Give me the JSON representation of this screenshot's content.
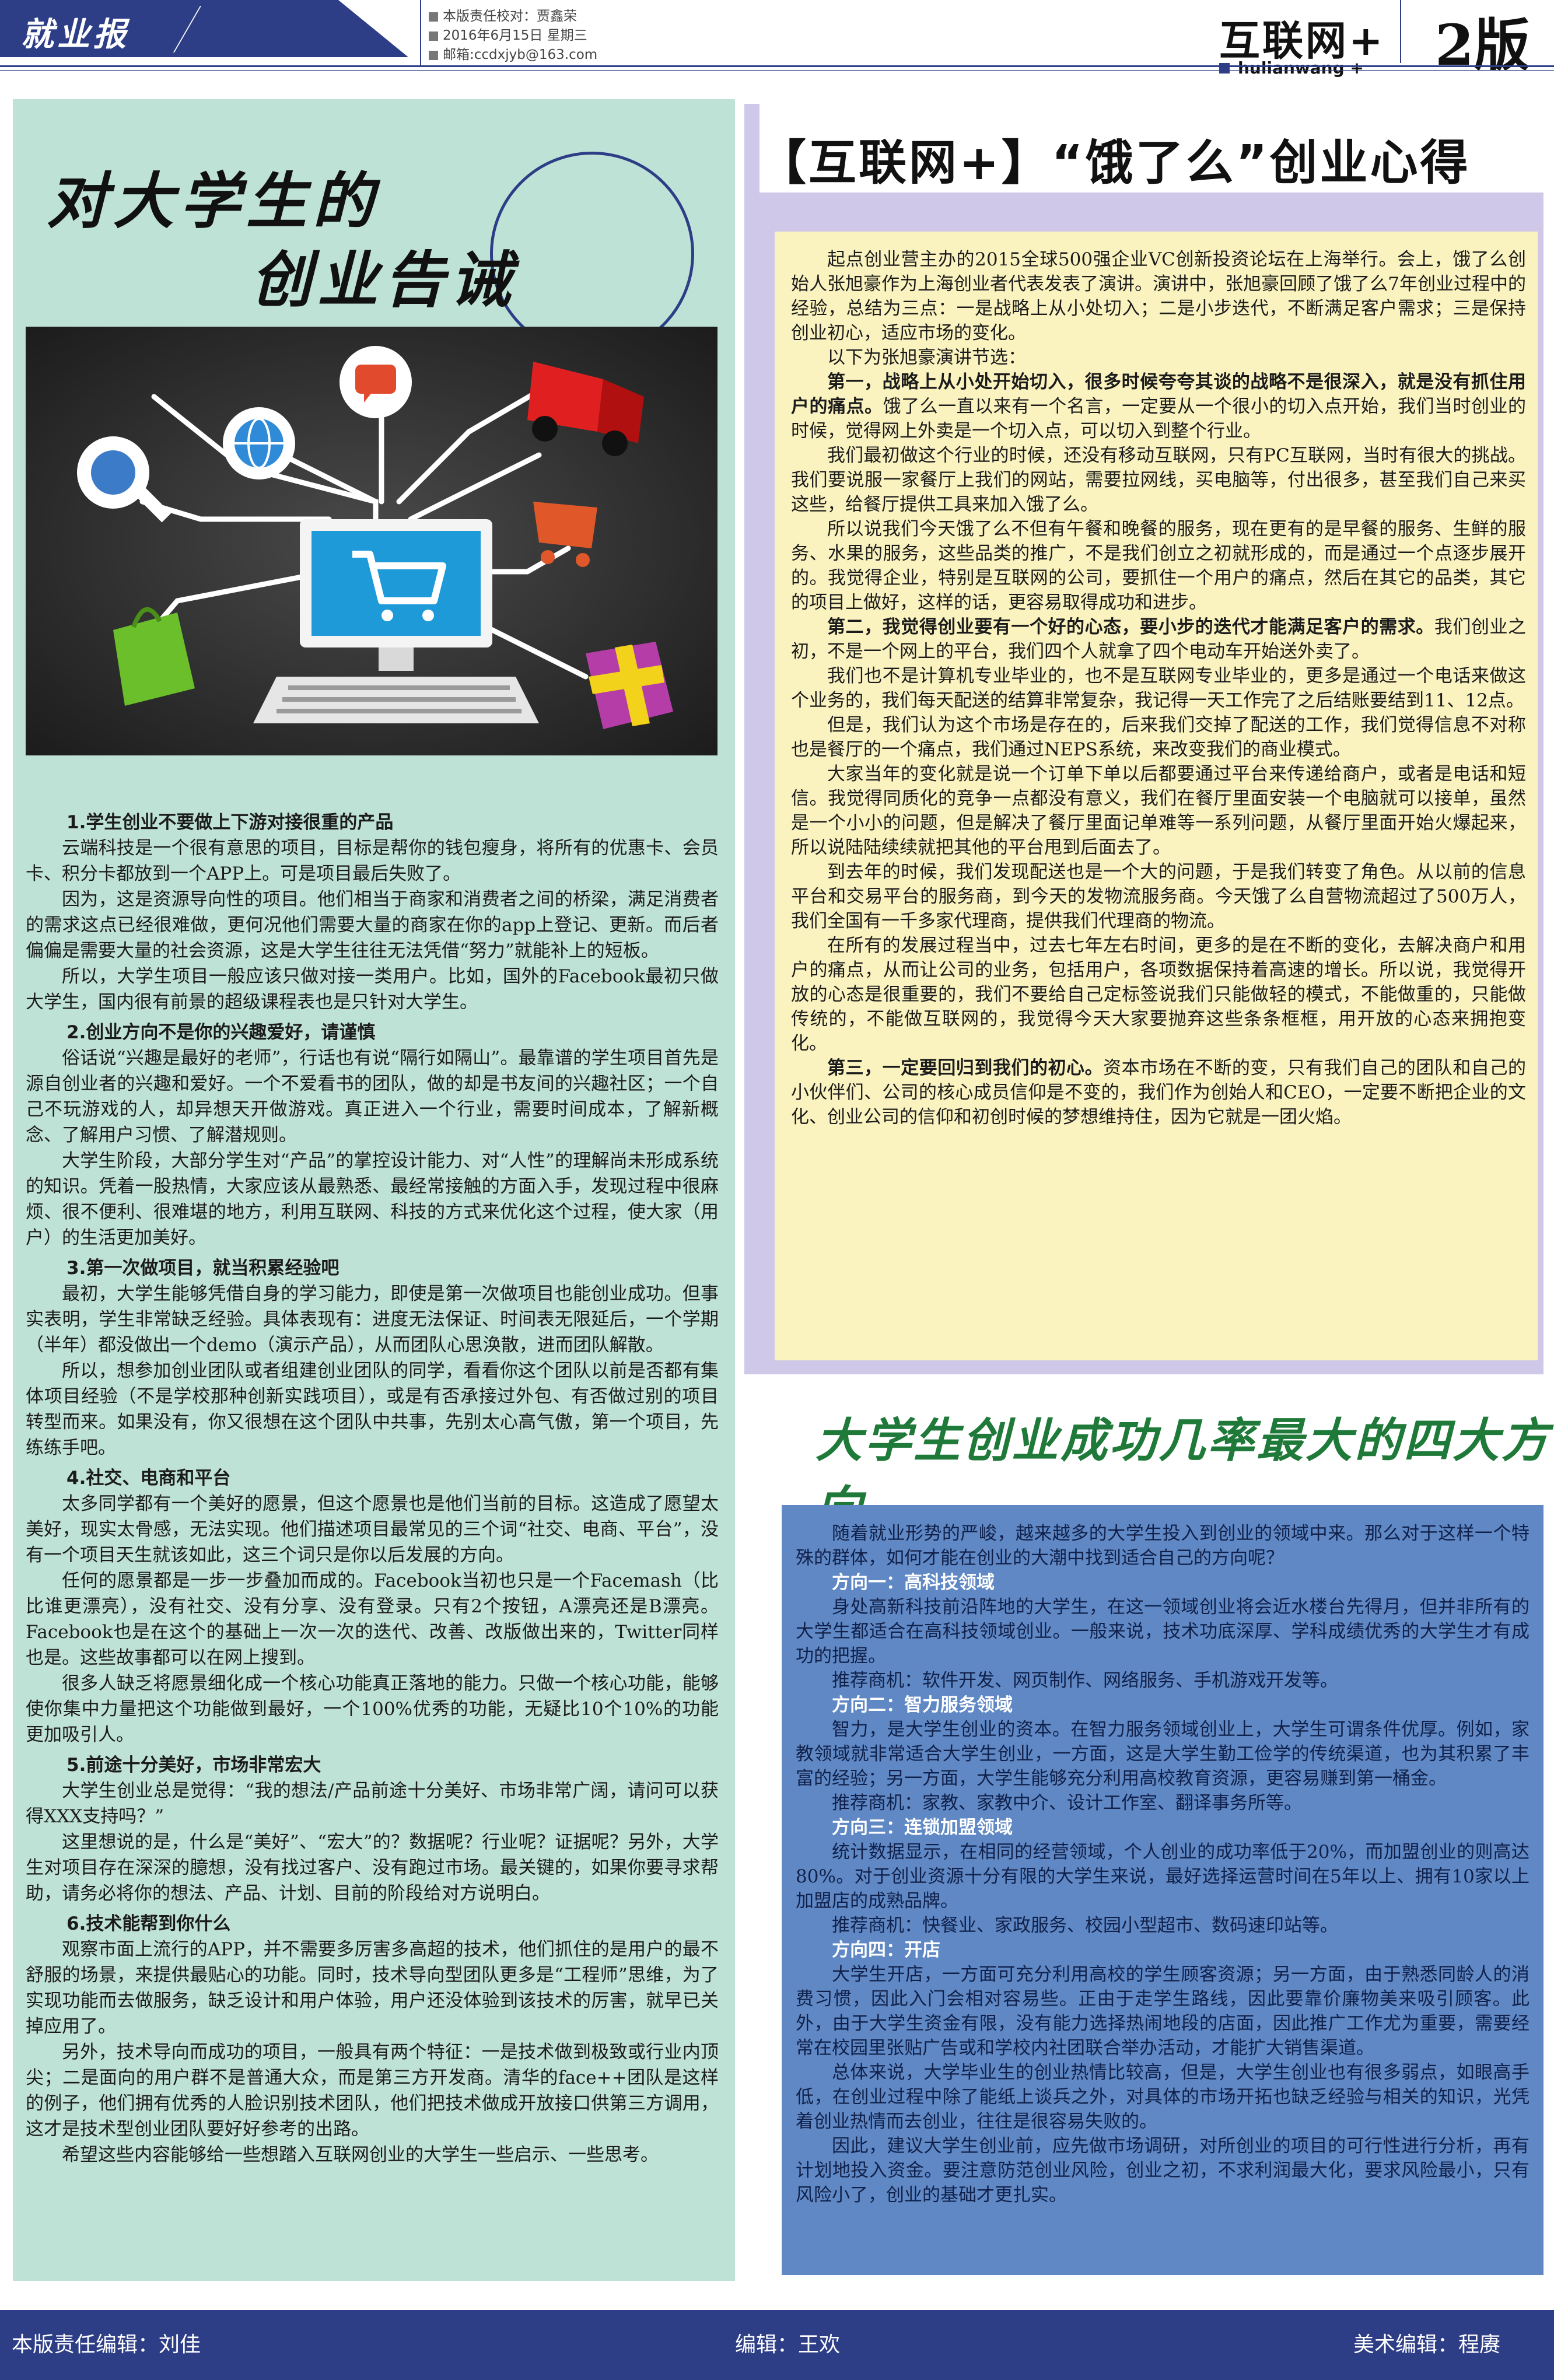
{
  "masthead": {
    "logo": "就业报",
    "editor_line": "本版责任校对：贾鑫荣",
    "date_line": "2016年6月15日  星期三",
    "email_line": "邮箱:ccdxjyb@163.com",
    "section_title": "互联网+",
    "section_sub": "hulianwang +",
    "edition": "2版"
  },
  "left_article": {
    "title_line1": "对大学生的",
    "title_line2": "创业告诫",
    "blocks": [
      {
        "type": "h",
        "text": "1.学生创业不要做上下游对接很重的产品"
      },
      {
        "type": "p",
        "text": "云端科技是一个很有意思的项目，目标是帮你的钱包瘦身，将所有的优惠卡、会员卡、积分卡都放到一个APP上。可是项目最后失败了。"
      },
      {
        "type": "p",
        "text": "因为，这是资源导向性的项目。他们相当于商家和消费者之间的桥梁，满足消费者的需求这点已经很难做，更何况他们需要大量的商家在你的app上登记、更新。而后者偏偏是需要大量的社会资源，这是大学生往往无法凭借“努力”就能补上的短板。"
      },
      {
        "type": "p",
        "text": "所以，大学生项目一般应该只做对接一类用户。比如，国外的Facebook最初只做大学生，国内很有前景的超级课程表也是只针对大学生。"
      },
      {
        "type": "h",
        "text": "2.创业方向不是你的兴趣爱好，请谨慎"
      },
      {
        "type": "p",
        "text": "俗话说“兴趣是最好的老师”，行话也有说“隔行如隔山”。最靠谱的学生项目首先是源自创业者的兴趣和爱好。一个不爱看书的团队，做的却是书友间的兴趣社区；一个自己不玩游戏的人，却异想天开做游戏。真正进入一个行业，需要时间成本，了解新概念、了解用户习惯、了解潜规则。"
      },
      {
        "type": "p",
        "text": "大学生阶段，大部分学生对“产品”的掌控设计能力、对“人性”的理解尚未形成系统的知识。凭着一股热情，大家应该从最熟悉、最经常接触的方面入手，发现过程中很麻烦、很不便利、很难堪的地方，利用互联网、科技的方式来优化这个过程，使大家（用户）的生活更加美好。"
      },
      {
        "type": "h",
        "text": "3.第一次做项目，就当积累经验吧"
      },
      {
        "type": "p",
        "text": "最初，大学生能够凭借自身的学习能力，即使是第一次做项目也能创业成功。但事实表明，学生非常缺乏经验。具体表现有：进度无法保证、时间表无限延后，一个学期（半年）都没做出一个demo（演示产品），从而团队心思涣散，进而团队解散。"
      },
      {
        "type": "p",
        "text": "所以，想参加创业团队或者组建创业团队的同学，看看你这个团队以前是否都有集体项目经验（不是学校那种创新实践项目），或是有否承接过外包、有否做过别的项目转型而来。如果没有，你又很想在这个团队中共事，先别太心高气傲，第一个项目，先练练手吧。"
      },
      {
        "type": "h",
        "text": "4.社交、电商和平台"
      },
      {
        "type": "p",
        "text": "太多同学都有一个美好的愿景，但这个愿景也是他们当前的目标。这造成了愿望太美好，现实太骨感，无法实现。他们描述项目最常见的三个词“社交、电商、平台”，没有一个项目天生就该如此，这三个词只是你以后发展的方向。"
      },
      {
        "type": "p",
        "text": "任何的愿景都是一步一步叠加而成的。Facebook当初也只是一个Facemash（比比谁更漂亮），没有社交、没有分享、没有登录。只有2个按钮，A漂亮还是B漂亮。Facebook也是在这个的基础上一次一次的迭代、改善、改版做出来的，Twitter同样也是。这些故事都可以在网上搜到。"
      },
      {
        "type": "p",
        "text": "很多人缺乏将愿景细化成一个核心功能真正落地的能力。只做一个核心功能，能够使你集中力量把这个功能做到最好，一个100%优秀的功能，无疑比10个10%的功能更加吸引人。"
      },
      {
        "type": "h",
        "text": "5.前途十分美好，市场非常宏大"
      },
      {
        "type": "p",
        "text": "大学生创业总是觉得：“我的想法/产品前途十分美好、市场非常广阔，请问可以获得XXX支持吗？”"
      },
      {
        "type": "p",
        "text": "这里想说的是，什么是“美好”、“宏大”的？数据呢？行业呢？证据呢？另外，大学生对项目存在深深的臆想，没有找过客户、没有跑过市场。最关键的，如果你要寻求帮助，请务必将你的想法、产品、计划、目前的阶段给对方说明白。"
      },
      {
        "type": "h",
        "text": "6.技术能帮到你什么"
      },
      {
        "type": "p",
        "text": "观察市面上流行的APP，并不需要多厉害多高超的技术，他们抓住的是用户的最不舒服的场景，来提供最贴心的功能。同时，技术导向型团队更多是“工程师”思维，为了实现功能而去做服务，缺乏设计和用户体验，用户还没体验到该技术的厉害，就早已关掉应用了。"
      },
      {
        "type": "p",
        "text": "另外，技术导向而成功的项目，一般具有两个特征：一是技术做到极致或行业内顶尖；二是面向的用户群不是普通大众，而是第三方开发商。清华的face++团队是这样的例子，他们拥有优秀的人脸识别技术团队，他们把技术做成开放接口供第三方调用，这才是技术型创业团队要好好参考的出路。"
      },
      {
        "type": "p",
        "text": "希望这些内容能够给一些想踏入互联网创业的大学生一些启示、一些思考。"
      }
    ]
  },
  "right_top": {
    "title": "【互联网+】“饿了么”创业心得",
    "blocks": [
      {
        "text": "起点创业营主办的2015全球500强企业VC创新投资论坛在上海举行。会上，饿了么创始人张旭豪作为上海创业者代表发表了演讲。演讲中，张旭豪回顾了饿了么7年创业过程中的经验，总结为三点：一是战略上从小处切入；二是小步迭代，不断满足客户需求；三是保持创业初心，适应市场的变化。"
      },
      {
        "text": "以下为张旭豪演讲节选："
      },
      {
        "bold": "第一，战略上从小处开始切入，很多时候夸夸其谈的战略不是很深入，就是没有抓住用户的痛点。",
        "text": "饿了么一直以来有一个名言，一定要从一个很小的切入点开始，我们当时创业的时候，觉得网上外卖是一个切入点，可以切入到整个行业。"
      },
      {
        "text": "我们最初做这个行业的时候，还没有移动互联网，只有PC互联网，当时有很大的挑战。我们要说服一家餐厅上我们的网站，需要拉网线，买电脑等，付出很多，甚至我们自己来买这些，给餐厅提供工具来加入饿了么。"
      },
      {
        "text": "所以说我们今天饿了么不但有午餐和晚餐的服务，现在更有的是早餐的服务、生鲜的服务、水果的服务，这些品类的推广，不是我们创立之初就形成的，而是通过一个点逐步展开的。我觉得企业，特别是互联网的公司，要抓住一个用户的痛点，然后在其它的品类，其它的项目上做好，这样的话，更容易取得成功和进步。"
      },
      {
        "bold": "第二，我觉得创业要有一个好的心态，要小步的迭代才能满足客户的需求。",
        "text": "我们创业之初，不是一个网上的平台，我们四个人就拿了四个电动车开始送外卖了。"
      },
      {
        "text": "我们也不是计算机专业毕业的，也不是互联网专业毕业的，更多是通过一个电话来做这个业务的，我们每天配送的结算非常复杂，我记得一天工作完了之后结账要结到11、12点。"
      },
      {
        "text": "但是，我们认为这个市场是存在的，后来我们交掉了配送的工作，我们觉得信息不对称也是餐厅的一个痛点，我们通过NEPS系统，来改变我们的商业模式。"
      },
      {
        "text": "大家当年的变化就是说一个订单下单以后都要通过平台来传递给商户，或者是电话和短信。我觉得同质化的竞争一点都没有意义，我们在餐厅里面安装一个电脑就可以接单，虽然是一个小小的问题，但是解决了餐厅里面记单难等一系列问题，从餐厅里面开始火爆起来，所以说陆陆续续就把其他的平台甩到后面去了。"
      },
      {
        "text": "到去年的时候，我们发现配送也是一个大的问题，于是我们转变了角色。从以前的信息平台和交易平台的服务商，到今天的发物流服务商。今天饿了么自营物流超过了500万人，我们全国有一千多家代理商，提供我们代理商的物流。"
      },
      {
        "text": "在所有的发展过程当中，过去七年左右时间，更多的是在不断的变化，去解决商户和用户的痛点，从而让公司的业务，包括用户，各项数据保持着高速的增长。所以说，我觉得开放的心态是很重要的，我们不要给自己定标签说我们只能做轻的模式，不能做重的，只能做传统的，不能做互联网的，我觉得今天大家要抛弃这些条条框框，用开放的心态来拥抱变化。"
      },
      {
        "bold": "第三，一定要回归到我们的初心。",
        "text": "资本市场在不断的变，只有我们自己的团队和自己的小伙伴们、公司的核心成员信仰是不变的，我们作为创始人和CEO，一定要不断把企业的文化、创业公司的信仰和初创时候的梦想维持住，因为它就是一团火焰。"
      }
    ]
  },
  "right_bottom": {
    "title": "大学生创业成功几率最大的四大方向",
    "blocks": [
      {
        "type": "p",
        "text": "随着就业形势的严峻，越来越多的大学生投入到创业的领域中来。那么对于这样一个特殊的群体，如何才能在创业的大潮中找到适合自己的方向呢？"
      },
      {
        "type": "h",
        "text": "方向一：高科技领域"
      },
      {
        "type": "p",
        "text": "身处高新科技前沿阵地的大学生，在这一领域创业将会近水楼台先得月，但并非所有的大学生都适合在高科技领域创业。一般来说，技术功底深厚、学科成绩优秀的大学生才有成功的把握。"
      },
      {
        "type": "p",
        "text": "推荐商机：软件开发、网页制作、网络服务、手机游戏开发等。"
      },
      {
        "type": "h",
        "text": "方向二：智力服务领域"
      },
      {
        "type": "p",
        "text": "智力，是大学生创业的资本。在智力服务领域创业上，大学生可谓条件优厚。例如，家教领域就非常适合大学生创业，一方面，这是大学生勤工俭学的传统渠道，也为其积累了丰富的经验；另一方面，大学生能够充分利用高校教育资源，更容易赚到第一桶金。"
      },
      {
        "type": "p",
        "text": "推荐商机：家教、家教中介、设计工作室、翻译事务所等。"
      },
      {
        "type": "h",
        "text": "方向三：连锁加盟领域"
      },
      {
        "type": "p",
        "text": "统计数据显示，在相同的经营领域，个人创业的成功率低于20%，而加盟创业的则高达80%。对于创业资源十分有限的大学生来说，最好选择运营时间在5年以上、拥有10家以上加盟店的成熟品牌。"
      },
      {
        "type": "p",
        "text": "推荐商机：快餐业、家政服务、校园小型超市、数码速印站等。"
      },
      {
        "type": "h",
        "text": "方向四：开店"
      },
      {
        "type": "p",
        "text": "大学生开店，一方面可充分利用高校的学生顾客资源；另一方面，由于熟悉同龄人的消费习惯，因此入门会相对容易些。正由于走学生路线，因此要靠价廉物美来吸引顾客。此外，由于大学生资金有限，没有能力选择热闹地段的店面，因此推广工作尤为重要，需要经常在校园里张贴广告或和学校内社团联合举办活动，才能扩大销售渠道。"
      },
      {
        "type": "p",
        "text": "总体来说，大学毕业生的创业热情比较高，但是，大学生创业也有很多弱点，如眼高手低，在创业过程中除了能纸上谈兵之外，对具体的市场开拓也缺乏经验与相关的知识，光凭着创业热情而去创业，往往是很容易失败的。"
      },
      {
        "type": "p",
        "text": "因此，建议大学生创业前，应先做市场调研，对所创业的项目的可行性进行分析，再有计划地投入资金。要注意防范创业风险，创业之初，不求利润最大化，要求风险最小，只有风险小了，创业的基础才更扎实。"
      }
    ]
  },
  "footer": {
    "left": "本版责任编辑：刘佳",
    "middle": "编辑：王欢",
    "right": "美术编辑：程赓"
  },
  "colors": {
    "navy": "#2d3e86",
    "left_panel": "#bfe2d6",
    "right_frame": "#cfc8e8",
    "right_box": "#fbf3bf",
    "lower_panel": "#5f88c4",
    "mid_title": "#1f7a3a"
  },
  "illustration_icons": [
    "magnifier-icon",
    "globe-icon",
    "chat-bubble-icon",
    "delivery-truck-icon",
    "shopping-cart-icon",
    "shopping-bag-icon",
    "gift-box-icon",
    "computer-monitor-icon"
  ]
}
